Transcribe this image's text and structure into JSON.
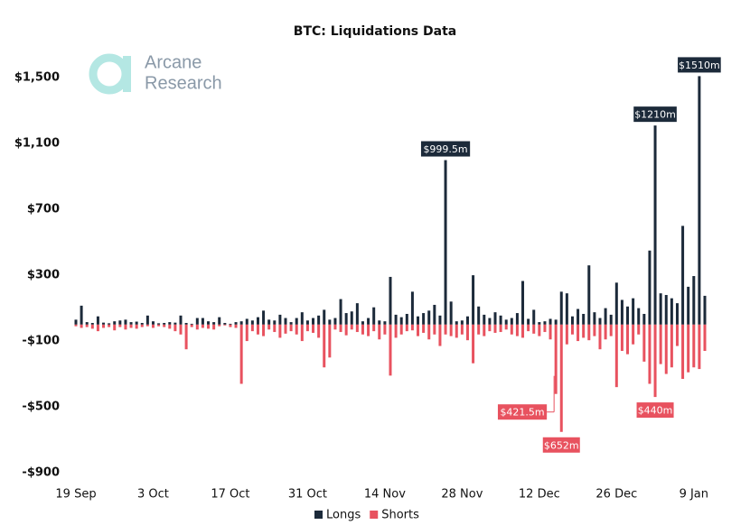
{
  "chart_data": {
    "type": "bar",
    "title": "BTC: Liquidations Data",
    "watermark": [
      "Arcane",
      "Research"
    ],
    "categories": [
      "19 Sep",
      null,
      null,
      null,
      null,
      null,
      null,
      null,
      null,
      null,
      null,
      null,
      null,
      null,
      "3 Oct",
      null,
      null,
      null,
      null,
      null,
      null,
      null,
      null,
      null,
      null,
      null,
      null,
      null,
      "17 Oct",
      null,
      null,
      null,
      null,
      null,
      null,
      null,
      null,
      null,
      null,
      null,
      null,
      null,
      "31 Oct",
      null,
      null,
      null,
      null,
      null,
      null,
      null,
      null,
      null,
      null,
      null,
      null,
      null,
      "14 Nov",
      null,
      null,
      null,
      null,
      null,
      null,
      null,
      null,
      null,
      null,
      null,
      null,
      null,
      "28 Nov",
      null,
      null,
      null,
      null,
      null,
      null,
      null,
      null,
      null,
      null,
      null,
      null,
      null,
      "12 Dec",
      null,
      null,
      null,
      null,
      null,
      null,
      null,
      null,
      null,
      null,
      null,
      null,
      null,
      "26 Dec",
      null,
      null,
      null,
      null,
      null,
      null,
      null,
      null,
      null,
      null,
      null,
      null,
      null,
      "9 Jan",
      null,
      null
    ],
    "series": [
      {
        "name": "Longs",
        "color": "#1c2a3a",
        "values": [
          30,
          115,
          15,
          10,
          50,
          12,
          8,
          20,
          25,
          30,
          15,
          18,
          10,
          55,
          20,
          8,
          10,
          15,
          12,
          55,
          10,
          5,
          40,
          40,
          20,
          15,
          45,
          10,
          5,
          15,
          20,
          35,
          25,
          45,
          85,
          30,
          25,
          60,
          40,
          15,
          40,
          75,
          25,
          40,
          55,
          90,
          30,
          40,
          155,
          70,
          80,
          130,
          20,
          40,
          105,
          25,
          20,
          290,
          60,
          45,
          65,
          200,
          50,
          70,
          85,
          120,
          55,
          999.5,
          140,
          20,
          25,
          50,
          300,
          110,
          60,
          40,
          75,
          55,
          30,
          40,
          70,
          265,
          35,
          90,
          15,
          20,
          35,
          30,
          200,
          190,
          50,
          95,
          65,
          360,
          75,
          40,
          100,
          60,
          255,
          150,
          110,
          160,
          100,
          65,
          450,
          1210,
          190,
          180,
          160,
          130,
          600,
          230,
          295,
          1510,
          175
        ],
        "value_labels": [
          null,
          null,
          null,
          null,
          null,
          null,
          null,
          null,
          null,
          null,
          null,
          null,
          null,
          null,
          null,
          null,
          null,
          null,
          null,
          null,
          null,
          null,
          null,
          null,
          null,
          null,
          null,
          null,
          null,
          null,
          null,
          null,
          null,
          null,
          null,
          null,
          null,
          null,
          null,
          null,
          null,
          null,
          null,
          null,
          null,
          null,
          null,
          null,
          null,
          null,
          null,
          null,
          null,
          null,
          null,
          null,
          null,
          null,
          null,
          null,
          null,
          null,
          null,
          null,
          null,
          null,
          null,
          "$999.5m",
          null,
          null,
          null,
          null,
          null,
          null,
          null,
          null,
          null,
          null,
          null,
          null,
          null,
          null,
          null,
          null,
          null,
          null,
          null,
          null,
          null,
          null,
          null,
          null,
          null,
          null,
          null,
          null,
          null,
          null,
          null,
          null,
          null,
          null,
          null,
          null,
          null,
          "$1210m",
          null,
          null,
          null,
          null,
          null,
          null,
          null,
          "$1510m",
          null
        ]
      },
      {
        "name": "Shorts",
        "color": "#e8525f",
        "values": [
          -10,
          -20,
          -15,
          -25,
          -40,
          -20,
          -15,
          -35,
          -15,
          -30,
          -20,
          -25,
          -15,
          -10,
          -20,
          -10,
          -15,
          -25,
          -40,
          -60,
          -150,
          -15,
          -30,
          -20,
          -25,
          -30,
          -10,
          -5,
          -15,
          -20,
          -360,
          -100,
          -40,
          -60,
          -70,
          -30,
          -45,
          -80,
          -55,
          -40,
          -60,
          -100,
          -40,
          -50,
          -80,
          -260,
          -200,
          -30,
          -45,
          -65,
          -30,
          -45,
          -60,
          -70,
          -40,
          -90,
          -60,
          -310,
          -80,
          -60,
          -40,
          -35,
          -70,
          -50,
          -90,
          -60,
          -130,
          -60,
          -70,
          -80,
          -60,
          -95,
          -235,
          -60,
          -70,
          -40,
          -50,
          -45,
          -30,
          -60,
          -70,
          -80,
          -40,
          -55,
          -70,
          -45,
          -90,
          -421.5,
          -652,
          -120,
          -60,
          -100,
          -80,
          -95,
          -70,
          -150,
          -90,
          -70,
          -380,
          -160,
          -180,
          -120,
          -60,
          -225,
          -360,
          -440,
          -240,
          -300,
          -260,
          -130,
          -330,
          -290,
          -260,
          -270,
          -160
        ],
        "value_labels": [
          null,
          null,
          null,
          null,
          null,
          null,
          null,
          null,
          null,
          null,
          null,
          null,
          null,
          null,
          null,
          null,
          null,
          null,
          null,
          null,
          null,
          null,
          null,
          null,
          null,
          null,
          null,
          null,
          null,
          null,
          null,
          null,
          null,
          null,
          null,
          null,
          null,
          null,
          null,
          null,
          null,
          null,
          null,
          null,
          null,
          null,
          null,
          null,
          null,
          null,
          null,
          null,
          null,
          null,
          null,
          null,
          null,
          null,
          null,
          null,
          null,
          null,
          null,
          null,
          null,
          null,
          null,
          null,
          null,
          null,
          null,
          null,
          null,
          null,
          null,
          null,
          null,
          null,
          null,
          null,
          null,
          null,
          null,
          null,
          null,
          null,
          null,
          "$421.5m",
          "$652m",
          null,
          null,
          null,
          null,
          null,
          null,
          null,
          null,
          null,
          null,
          null,
          null,
          null,
          null,
          null,
          null,
          "$440m",
          null,
          null,
          null,
          null,
          null,
          null,
          null,
          null,
          null
        ]
      }
    ],
    "ylim": [
      -900,
      1600
    ],
    "yticks": [
      {
        "value": 1500,
        "label": "$1,500"
      },
      {
        "value": 1100,
        "label": "$1,100"
      },
      {
        "value": 700,
        "label": "$700"
      },
      {
        "value": 300,
        "label": "$300"
      },
      {
        "value": -100,
        "label": "-$100"
      },
      {
        "value": -500,
        "label": "-$500"
      },
      {
        "value": -900,
        "label": "-$900"
      }
    ],
    "grid": false,
    "legend": "bottom"
  }
}
